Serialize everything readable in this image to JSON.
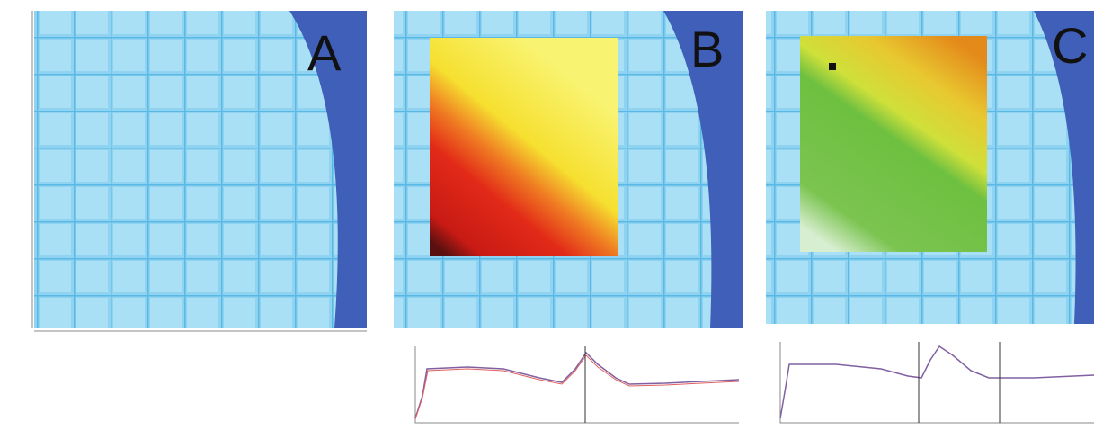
{
  "panels": [
    {
      "label": "A"
    },
    {
      "label": "B"
    },
    {
      "label": "C"
    }
  ]
}
